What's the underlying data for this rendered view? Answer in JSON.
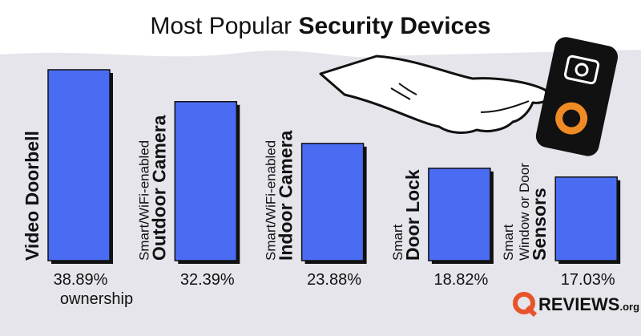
{
  "chart_data": {
    "type": "bar",
    "title": "Most Popular",
    "title_bold": "Security Devices",
    "categories": [
      "Video Doorbell",
      "Outdoor Camera",
      "Indoor Camera",
      "Door Lock",
      "Sensors"
    ],
    "category_prefixes": [
      null,
      [
        "Smart/WiFi-enabled"
      ],
      [
        "Smart/WiFi-enabled"
      ],
      [
        "Smart"
      ],
      [
        "Smart",
        "Window or Door"
      ]
    ],
    "values": [
      38.89,
      32.39,
      23.88,
      18.82,
      17.03
    ],
    "value_labels": [
      "38.89%",
      "32.39%",
      "23.88%",
      "18.82%",
      "17.03%"
    ],
    "value_note": "ownership",
    "color": "#4a6cf2",
    "logo": "REVIEWS",
    "logo_suffix": ".org"
  }
}
